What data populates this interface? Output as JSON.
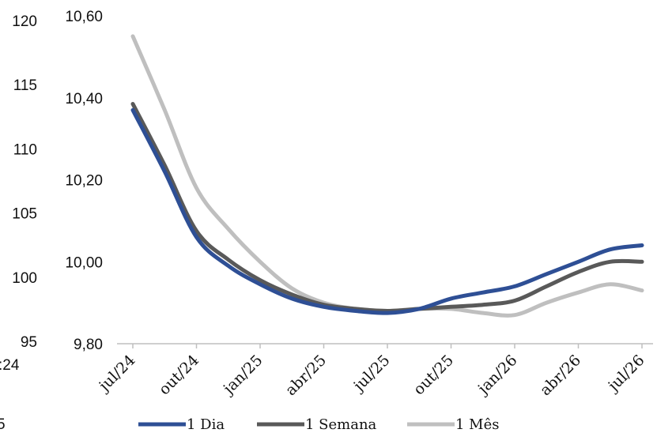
{
  "overlay_fragments": {
    "left_axis_ticks": [
      "120",
      "115",
      "110",
      "105",
      "100",
      "95"
    ],
    "left_axis_values": [
      120,
      115,
      110,
      105,
      100,
      95
    ],
    "stray_texts": [
      ":24",
      "5"
    ]
  },
  "chart_data": {
    "type": "line",
    "title": "",
    "xlabel": "",
    "ylabel": "",
    "categories": [
      "jul/24",
      "out/24",
      "jan/25",
      "abr/25",
      "jul/25",
      "out/25",
      "jan/26",
      "abr/26",
      "jul/26"
    ],
    "ylim": [
      9.8,
      10.6
    ],
    "yticks": [
      9.8,
      10.0,
      10.2,
      10.4,
      10.6
    ],
    "ytick_labels": [
      "9,80",
      "10,00",
      "10,20",
      "10,40",
      "10,60"
    ],
    "grid": false,
    "legend_position": "bottom",
    "series": [
      {
        "name": "1 Dia",
        "color": "#2E4F95",
        "x": [
          0,
          0.5,
          1,
          1.5,
          2,
          2.5,
          3,
          3.5,
          4,
          4.5,
          5,
          5.5,
          6,
          6.5,
          7,
          7.5,
          8
        ],
        "values": [
          10.37,
          10.22,
          10.06,
          9.99,
          9.945,
          9.91,
          9.89,
          9.88,
          9.875,
          9.885,
          9.91,
          9.925,
          9.94,
          9.97,
          10.0,
          10.03,
          10.04
        ]
      },
      {
        "name": "1 Semana",
        "color": "#595959",
        "x": [
          0,
          0.5,
          1,
          1.5,
          2,
          2.5,
          3,
          3.5,
          4,
          4.5,
          5,
          5.5,
          6,
          6.5,
          7,
          7.5,
          8
        ],
        "values": [
          10.385,
          10.235,
          10.075,
          10.005,
          9.955,
          9.92,
          9.895,
          9.885,
          9.88,
          9.885,
          9.89,
          9.895,
          9.905,
          9.94,
          9.975,
          10.0,
          10.0
        ]
      },
      {
        "name": "1 Mês",
        "color": "#BFBFBF",
        "x": [
          0,
          0.5,
          1,
          1.5,
          2,
          2.5,
          3,
          3.5,
          4,
          4.5,
          5,
          5.5,
          6,
          6.5,
          7,
          7.5,
          8
        ],
        "values": [
          10.55,
          10.37,
          10.18,
          10.08,
          10.0,
          9.935,
          9.9,
          9.885,
          9.88,
          9.885,
          9.885,
          9.875,
          9.87,
          9.9,
          9.925,
          9.945,
          9.93
        ]
      }
    ]
  }
}
